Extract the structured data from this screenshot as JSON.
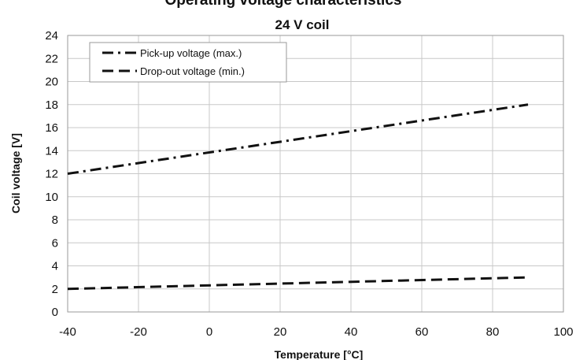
{
  "chart_data": {
    "type": "line",
    "title": "Operating voltage characteristics",
    "subtitle": "24 V coil",
    "xlabel": "Temperature [°C]",
    "ylabel": "Coil voltage [V]",
    "xlim": [
      -40,
      100
    ],
    "ylim": [
      0,
      24
    ],
    "x_ticks": [
      -40,
      -20,
      0,
      20,
      40,
      60,
      80,
      100
    ],
    "y_ticks": [
      0,
      2,
      4,
      6,
      8,
      10,
      12,
      14,
      16,
      18,
      20,
      22,
      24
    ],
    "grid": true,
    "legend_position": "top-left",
    "series": [
      {
        "name": "Pick-up voltage (max.)",
        "dash": "dash-dot",
        "x": [
          -40,
          90
        ],
        "y": [
          12,
          18
        ]
      },
      {
        "name": "Drop-out voltage (min.)",
        "dash": "dashed",
        "x": [
          -40,
          90
        ],
        "y": [
          2,
          3
        ]
      }
    ]
  }
}
